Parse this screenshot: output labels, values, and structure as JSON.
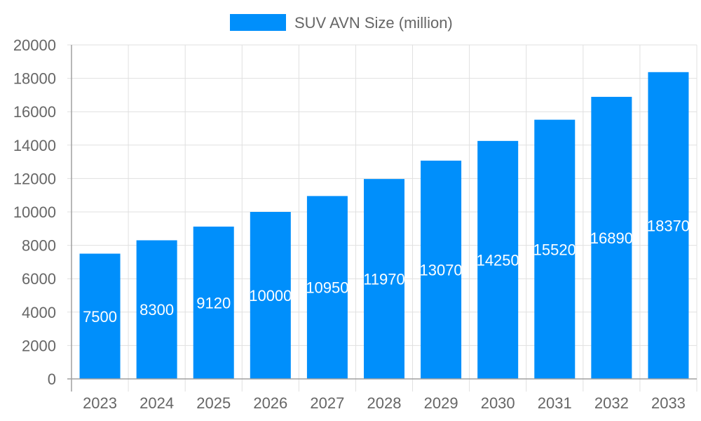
{
  "chart_data": {
    "type": "bar",
    "title": "",
    "xlabel": "",
    "ylabel": "",
    "categories": [
      "2023",
      "2024",
      "2025",
      "2026",
      "2027",
      "2028",
      "2029",
      "2030",
      "2031",
      "2032",
      "2033"
    ],
    "series": [
      {
        "name": "SUV AVN Size (million)",
        "values": [
          7500,
          8300,
          9120,
          10000,
          10950,
          11970,
          13070,
          14250,
          15520,
          16890,
          18370
        ],
        "color": "#008ffb"
      }
    ],
    "ylim": [
      0,
      20000
    ],
    "yticks": [
      0,
      2000,
      4000,
      6000,
      8000,
      10000,
      12000,
      14000,
      16000,
      18000,
      20000
    ],
    "grid": true,
    "legend": "top-center",
    "data_labels": true
  }
}
